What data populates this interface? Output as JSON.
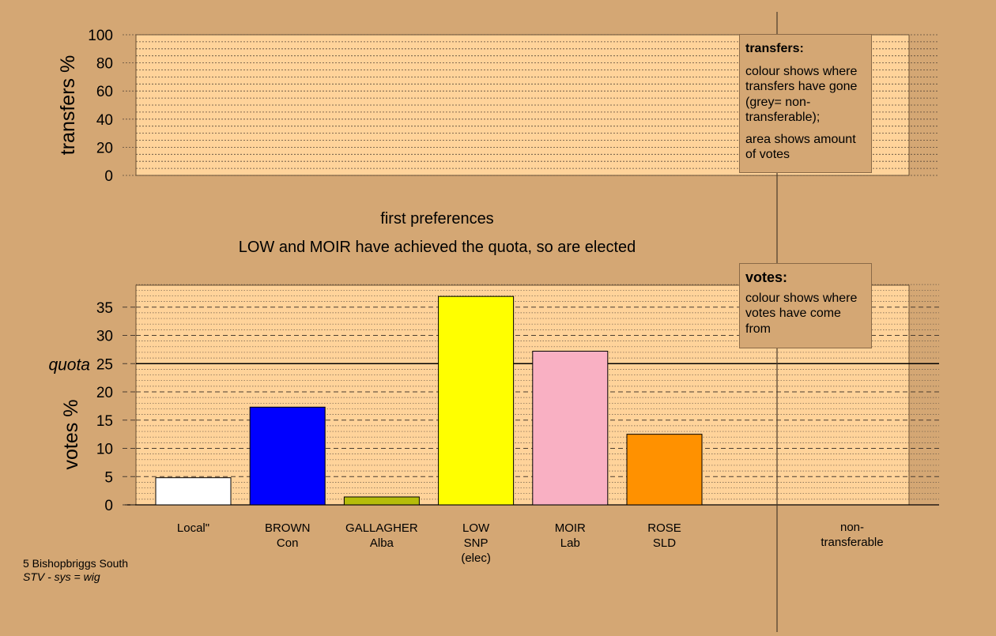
{
  "chart_data": {
    "type": "bar",
    "title": "first preferences",
    "subtitle": "LOW and MOIR have achieved the quota, so are elected",
    "transfers_panel": {
      "ylabel": "transfers %",
      "ylim": [
        0,
        100
      ],
      "yticks": [
        0,
        20,
        40,
        60,
        80,
        100
      ]
    },
    "votes_panel": {
      "ylabel": "votes %",
      "ylim": [
        0,
        39
      ],
      "yticks": [
        0,
        5,
        10,
        15,
        20,
        25,
        30,
        35
      ],
      "quota_label": "quota",
      "quota": 25,
      "categories": [
        {
          "name": "Local\"",
          "party": "",
          "note": ""
        },
        {
          "name": "BROWN",
          "party": "Con",
          "note": ""
        },
        {
          "name": "GALLAGHER",
          "party": "Alba",
          "note": ""
        },
        {
          "name": "LOW",
          "party": "SNP",
          "note": "(elec)"
        },
        {
          "name": "MOIR",
          "party": "Lab",
          "note": ""
        },
        {
          "name": "ROSE",
          "party": "SLD",
          "note": ""
        }
      ],
      "values": [
        4.8,
        17.3,
        1.4,
        36.9,
        27.2,
        12.5
      ],
      "colors": [
        "#FFFFFF",
        "#0000FF",
        "#B5BD0A",
        "#FFFF00",
        "#F9B0C3",
        "#FF9100"
      ],
      "extra_category": [
        "non-",
        "transferable"
      ]
    },
    "grid": true
  },
  "legend_transfers": {
    "title": "transfers:",
    "text1": "colour shows where transfers have gone (grey= non-transferable);",
    "text2": "area shows amount of votes"
  },
  "legend_votes": {
    "title": "votes:",
    "text1": "colour shows where votes have come from"
  },
  "footer": {
    "place": "5 Bishopbriggs South",
    "system": "STV - sys = wig"
  },
  "colors": {
    "background": "#D4A774",
    "plot_fill": "#FFD39A"
  }
}
